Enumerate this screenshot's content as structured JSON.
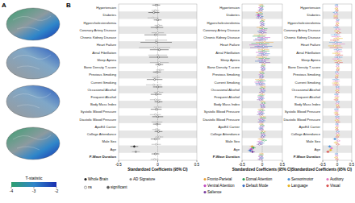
{
  "panel_labels": [
    "A",
    "B"
  ],
  "colorbar": {
    "label": "T-statistic",
    "range": [
      -4,
      -2
    ],
    "ticks": [
      -4,
      -3,
      -2
    ]
  },
  "chart_data": [
    {
      "type": "forest",
      "orientation": "horizontal",
      "x_label": "Standardized Coefficients (95% CI)",
      "xlim": [
        -0.5,
        0.5
      ],
      "xticks": [
        -0.5,
        0,
        0.5
      ],
      "grid": false,
      "legend": "bottom",
      "categories": [
        "Hypertension",
        "Diabetes",
        "Hypercholesterolemia",
        "Coronary Artery Disease",
        "Chronic Kidney Disease",
        "Heart Failure",
        "Atrial Fibrillation",
        "Sleep Apnea",
        "Bone Density T-score",
        "Previous Smoking",
        "Current Smoking",
        "Occasional Alcohol",
        "Frequent Alcohol",
        "Body Mass Index",
        "Systolic Blood Pressure",
        "Diastolic Blood Pressure",
        "ApoE4 Carrier",
        "College Attendance",
        "Male Sex",
        "Age",
        "P-Wave Duration"
      ],
      "significance_labels": [
        "ns",
        "significant"
      ],
      "series": [
        {
          "name": "Whole Brain",
          "color": "#222222",
          "values": [
            -0.02,
            -0.05,
            0.0,
            -0.01,
            -0.03,
            -0.02,
            0.02,
            0.01,
            0.02,
            -0.01,
            -0.04,
            0.0,
            -0.02,
            0.01,
            -0.02,
            0.0,
            -0.01,
            0.01,
            -0.03,
            -0.3,
            -0.03
          ],
          "errors": [
            0.05,
            0.07,
            0.05,
            0.08,
            0.14,
            0.2,
            0.12,
            0.12,
            0.05,
            0.05,
            0.1,
            0.06,
            0.07,
            0.05,
            0.07,
            0.07,
            0.05,
            0.05,
            0.06,
            0.05,
            0.05
          ]
        },
        {
          "name": "AD Signature",
          "color": "#8c8c8c",
          "values": [
            -0.03,
            -0.06,
            0.01,
            0.0,
            -0.02,
            -0.04,
            0.0,
            0.02,
            0.03,
            -0.02,
            -0.05,
            0.01,
            -0.03,
            0.0,
            -0.03,
            -0.01,
            -0.02,
            0.02,
            -0.02,
            -0.28,
            -0.04
          ],
          "errors": [
            0.05,
            0.07,
            0.05,
            0.08,
            0.14,
            0.2,
            0.12,
            0.12,
            0.05,
            0.05,
            0.1,
            0.06,
            0.07,
            0.05,
            0.07,
            0.07,
            0.05,
            0.05,
            0.06,
            0.05,
            0.05
          ]
        }
      ]
    },
    {
      "type": "forest",
      "orientation": "horizontal",
      "x_label": "Standardized Coefficients (95% CI)",
      "xlim": [
        -0.5,
        0.5
      ],
      "xticks": [
        -0.5,
        0,
        0.5
      ],
      "grid": false,
      "legend": "bottom",
      "categories": [
        "Hypertension",
        "Diabetes",
        "Hypercholesterolemia",
        "Coronary Artery Disease",
        "Chronic Kidney Disease",
        "Heart Failure",
        "Atrial Fibrillation",
        "Sleep Apnea",
        "Bone Density T-score",
        "Previous Smoking",
        "Current Smoking",
        "Occasional Alcohol",
        "Frequent Alcohol",
        "Body Mass Index",
        "Systolic Blood Pressure",
        "Diastolic Blood Pressure",
        "ApoE4 Carrier",
        "College Attendance",
        "Male Sex",
        "Age",
        "P-Wave Duration"
      ],
      "series": [
        {
          "name": "Fronto-Parietal",
          "color": "#e8a33d",
          "values": [
            -0.03,
            -0.08,
            0.02,
            -0.04,
            -0.05,
            0.06,
            0.03,
            -0.02,
            0.03,
            -0.02,
            -0.06,
            0.02,
            -0.01,
            0.02,
            -0.03,
            0.01,
            -0.02,
            0.03,
            -0.04,
            -0.25,
            -0.02
          ],
          "errors": [
            0.06,
            0.08,
            0.06,
            0.1,
            0.16,
            0.22,
            0.14,
            0.14,
            0.06,
            0.06,
            0.12,
            0.07,
            0.08,
            0.06,
            0.08,
            0.08,
            0.06,
            0.06,
            0.07,
            0.06,
            0.06
          ]
        },
        {
          "name": "Dorsal Attention",
          "color": "#2ca05a",
          "values": [
            -0.01,
            -0.06,
            0.0,
            0.03,
            -0.08,
            -0.05,
            0.04,
            0.05,
            0.02,
            0.0,
            -0.03,
            0.0,
            -0.03,
            0.03,
            -0.01,
            0.02,
            0.0,
            0.01,
            0.05,
            -0.22,
            -0.03
          ],
          "errors": [
            0.06,
            0.08,
            0.06,
            0.1,
            0.16,
            0.22,
            0.14,
            0.14,
            0.06,
            0.06,
            0.12,
            0.07,
            0.08,
            0.06,
            0.08,
            0.08,
            0.06,
            0.06,
            0.07,
            0.06,
            0.06
          ]
        },
        {
          "name": "Ventral Attention",
          "color": "#c04bc0",
          "values": [
            -0.04,
            -0.09,
            -0.01,
            0.02,
            0.04,
            -0.1,
            -0.02,
            0.03,
            0.01,
            -0.03,
            -0.07,
            0.01,
            -0.04,
            0.0,
            -0.04,
            -0.02,
            -0.01,
            0.02,
            -0.06,
            -0.27,
            -0.04
          ],
          "errors": [
            0.06,
            0.08,
            0.06,
            0.1,
            0.16,
            0.22,
            0.14,
            0.14,
            0.06,
            0.06,
            0.12,
            0.07,
            0.08,
            0.06,
            0.08,
            0.08,
            0.06,
            0.06,
            0.07,
            0.06,
            0.06
          ]
        },
        {
          "name": "Default Mode",
          "color": "#3b6fc4",
          "values": [
            -0.02,
            -0.05,
            0.01,
            -0.02,
            -0.02,
            0.03,
            0.05,
            -0.04,
            0.03,
            -0.01,
            -0.05,
            0.02,
            -0.02,
            0.01,
            -0.02,
            0.0,
            -0.03,
            0.03,
            -0.02,
            -0.3,
            -0.02
          ],
          "errors": [
            0.06,
            0.08,
            0.06,
            0.1,
            0.16,
            0.22,
            0.14,
            0.14,
            0.06,
            0.06,
            0.12,
            0.07,
            0.08,
            0.06,
            0.08,
            0.08,
            0.06,
            0.06,
            0.07,
            0.06,
            0.06
          ]
        },
        {
          "name": "Salience",
          "color": "#7b3fa0",
          "values": [
            -0.05,
            -0.07,
            0.0,
            0.01,
            -0.06,
            -0.08,
            0.01,
            0.06,
            0.02,
            -0.02,
            -0.04,
            -0.01,
            -0.05,
            0.02,
            -0.05,
            -0.03,
            -0.02,
            0.01,
            -0.07,
            -0.24,
            -0.05
          ],
          "errors": [
            0.06,
            0.08,
            0.06,
            0.1,
            0.16,
            0.22,
            0.14,
            0.14,
            0.06,
            0.06,
            0.12,
            0.07,
            0.08,
            0.06,
            0.08,
            0.08,
            0.06,
            0.06,
            0.07,
            0.06,
            0.06
          ]
        }
      ]
    },
    {
      "type": "forest",
      "orientation": "horizontal",
      "x_label": "Standardized Coefficients (95% CI)",
      "xlim": [
        -0.5,
        0.5
      ],
      "xticks": [
        -0.5,
        0,
        0.5
      ],
      "grid": false,
      "legend": "bottom",
      "categories": [
        "Hypertension",
        "Diabetes",
        "Hypercholesterolemia",
        "Coronary Artery Disease",
        "Chronic Kidney Disease",
        "Heart Failure",
        "Atrial Fibrillation",
        "Sleep Apnea",
        "Bone Density T-score",
        "Previous Smoking",
        "Current Smoking",
        "Occasional Alcohol",
        "Frequent Alcohol",
        "Body Mass Index",
        "Systolic Blood Pressure",
        "Diastolic Blood Pressure",
        "ApoE4 Carrier",
        "College Attendance",
        "Male Sex",
        "Age",
        "P-Wave Duration"
      ],
      "series": [
        {
          "name": "Sensorimotor",
          "color": "#4a90d9",
          "values": [
            -0.03,
            -0.07,
            0.02,
            -0.03,
            -0.07,
            -0.06,
            0.02,
            0.04,
            0.02,
            -0.02,
            -0.05,
            0.01,
            -0.03,
            0.02,
            -0.03,
            0.0,
            -0.01,
            0.02,
            -0.08,
            -0.26,
            -0.03
          ],
          "errors": [
            0.06,
            0.08,
            0.06,
            0.1,
            0.16,
            0.22,
            0.14,
            0.14,
            0.06,
            0.06,
            0.12,
            0.07,
            0.08,
            0.06,
            0.08,
            0.08,
            0.06,
            0.06,
            0.07,
            0.06,
            0.06
          ]
        },
        {
          "name": "Auditory",
          "color": "#e377c2",
          "values": [
            -0.02,
            -0.04,
            0.0,
            0.02,
            -0.04,
            0.05,
            0.04,
            -0.03,
            0.01,
            0.0,
            -0.03,
            0.02,
            -0.01,
            0.0,
            -0.02,
            0.01,
            0.0,
            0.01,
            0.04,
            -0.2,
            -0.02
          ],
          "errors": [
            0.06,
            0.08,
            0.06,
            0.1,
            0.16,
            0.22,
            0.14,
            0.14,
            0.06,
            0.06,
            0.12,
            0.07,
            0.08,
            0.06,
            0.08,
            0.08,
            0.06,
            0.06,
            0.07,
            0.06,
            0.06
          ]
        },
        {
          "name": "Language",
          "color": "#e6b422",
          "values": [
            -0.03,
            -0.06,
            0.01,
            -0.01,
            0.03,
            -0.09,
            -0.03,
            0.02,
            0.03,
            -0.01,
            -0.06,
            0.0,
            -0.02,
            0.01,
            -0.04,
            -0.01,
            -0.02,
            0.03,
            -0.05,
            -0.23,
            -0.04
          ],
          "errors": [
            0.06,
            0.08,
            0.06,
            0.1,
            0.16,
            0.22,
            0.14,
            0.14,
            0.06,
            0.06,
            0.12,
            0.07,
            0.08,
            0.06,
            0.08,
            0.08,
            0.06,
            0.06,
            0.07,
            0.06,
            0.06
          ]
        },
        {
          "name": "Visual",
          "color": "#d9534f",
          "values": [
            -0.01,
            -0.05,
            -0.01,
            0.04,
            -0.09,
            -0.04,
            0.06,
            0.05,
            0.02,
            -0.02,
            -0.04,
            0.01,
            -0.04,
            0.03,
            -0.01,
            0.02,
            -0.01,
            0.0,
            0.02,
            -0.32,
            -0.01
          ],
          "errors": [
            0.06,
            0.08,
            0.06,
            0.1,
            0.16,
            0.22,
            0.14,
            0.14,
            0.06,
            0.06,
            0.12,
            0.07,
            0.08,
            0.06,
            0.08,
            0.08,
            0.06,
            0.06,
            0.07,
            0.06,
            0.06
          ]
        }
      ]
    }
  ]
}
